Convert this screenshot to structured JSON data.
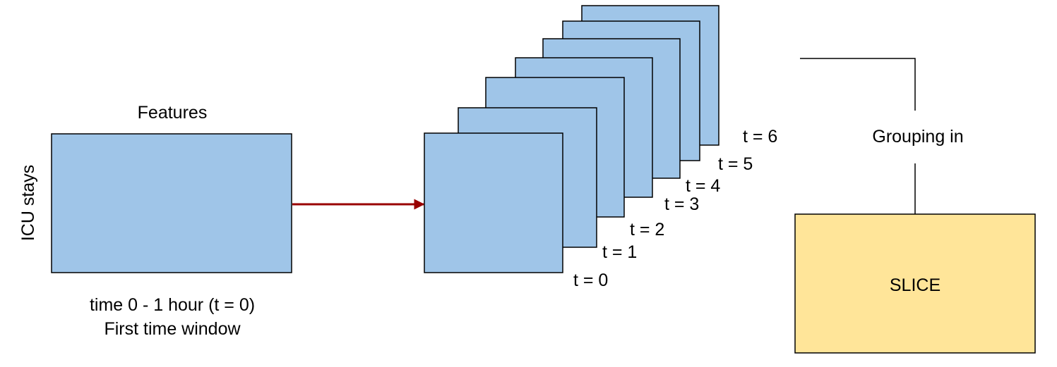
{
  "source_matrix": {
    "top_label": "Features",
    "side_label": "ICU stays",
    "caption_line1": "time 0 - 1 hour (t = 0)",
    "caption_line2": "First time window",
    "fill": "#9fc5e8"
  },
  "stack": {
    "fill": "#9fc5e8",
    "labels": [
      "t = 0",
      "t = 1",
      "t = 2",
      "t = 3",
      "t = 4",
      "t = 5",
      "t = 6"
    ]
  },
  "arrow_color": "#990000",
  "grouping_label": "Grouping in",
  "slice_box": {
    "label": "SLICE",
    "fill": "#ffe599"
  }
}
